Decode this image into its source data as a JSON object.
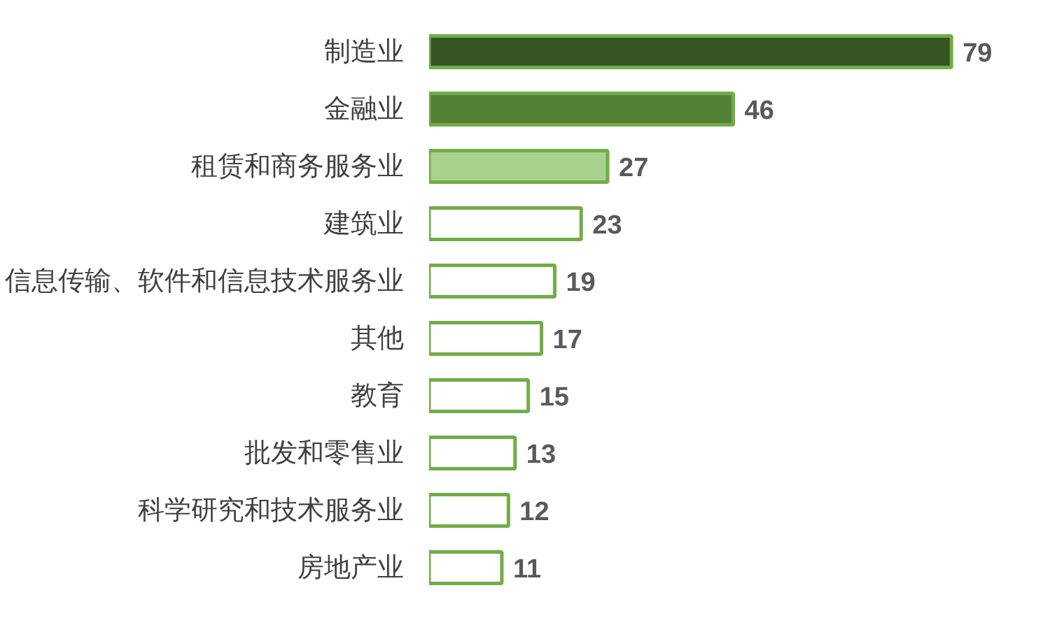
{
  "chart_data": {
    "type": "bar",
    "orientation": "horizontal",
    "categories": [
      "制造业",
      "金融业",
      "租赁和商务服务业",
      "建筑业",
      "信息传输、软件和信息技术服务业",
      "其他",
      "教育",
      "批发和零售业",
      "科学研究和技术服务业",
      "房地产业"
    ],
    "values": [
      79,
      46,
      27,
      23,
      19,
      17,
      15,
      13,
      12,
      11
    ],
    "colors": [
      "#375623",
      "#538135",
      "#a9d18e",
      "#ffffff",
      "#ffffff",
      "#ffffff",
      "#ffffff",
      "#ffffff",
      "#ffffff",
      "#ffffff"
    ],
    "data_labels": true,
    "grid": false,
    "tick_labels": "y"
  }
}
